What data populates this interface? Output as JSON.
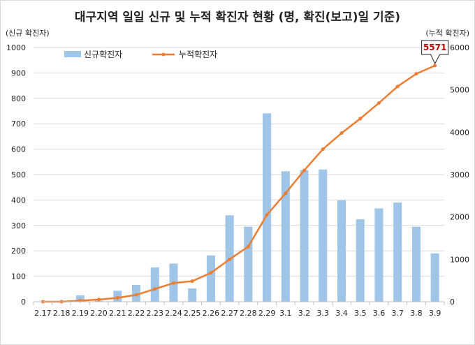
{
  "chart_data": {
    "type": "bar",
    "title": "대구지역 일일 신규 및 누적 확진자 현황 (명, 확진(보고)일 기준)",
    "ylabel_left": "(신규 확진자)",
    "ylabel_right": "(누적 확진자)",
    "categories": [
      "2.17",
      "2.18",
      "2.19",
      "2.20",
      "2.21",
      "2.22",
      "2.23",
      "2.24",
      "2.25",
      "2.26",
      "2.27",
      "2.28",
      "2.29",
      "3.1",
      "3.2",
      "3.3",
      "3.4",
      "3.5",
      "3.6",
      "3.7",
      "3.8",
      "3.9"
    ],
    "ylim_left": [
      0,
      1000
    ],
    "yticks_left": [
      0,
      100,
      200,
      300,
      400,
      500,
      600,
      700,
      800,
      900,
      1000
    ],
    "ylim_right": [
      0,
      6000
    ],
    "yticks_right": [
      0,
      1000,
      2000,
      3000,
      4000,
      5000,
      6000
    ],
    "grid": true,
    "legend_position": "top-left",
    "series": [
      {
        "name": "신규확진자",
        "type": "bar",
        "axis": "left",
        "color": "#9fc5e8",
        "values": [
          0,
          0,
          25,
          4,
          43,
          66,
          135,
          150,
          52,
          182,
          340,
          295,
          741,
          513,
          518,
          520,
          399,
          324,
          367,
          390,
          295,
          190
        ]
      },
      {
        "name": "누적확진자",
        "type": "line",
        "axis": "right",
        "color": "#ed7d31",
        "values": [
          1,
          1,
          24,
          52,
          90,
          160,
          300,
          440,
          485,
          680,
          1000,
          1300,
          2050,
          2560,
          3100,
          3600,
          3980,
          4320,
          4690,
          5080,
          5380,
          5571
        ]
      }
    ],
    "annotation": {
      "text": "5571",
      "category": "3.9"
    }
  }
}
